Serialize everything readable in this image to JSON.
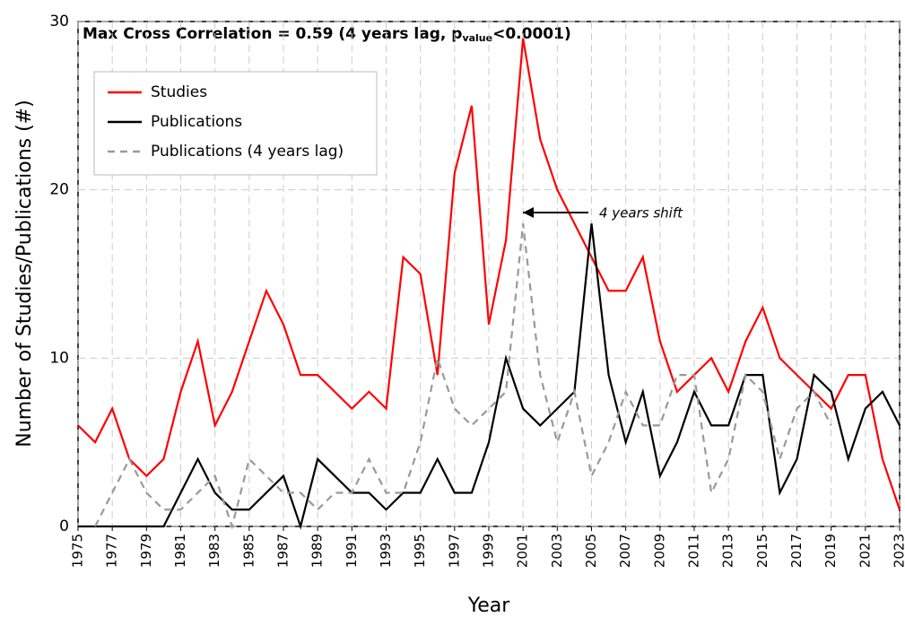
{
  "chart_data": {
    "type": "line",
    "title_parts": [
      "Max Cross Correlation = 0.59 (4 years lag, p",
      "value",
      "<0.0001)"
    ],
    "x_label": "Year",
    "y_label": "Number of Studies/Publications (#)",
    "annotation": "4 years shift",
    "x": [
      1975,
      1976,
      1977,
      1978,
      1979,
      1980,
      1981,
      1982,
      1983,
      1984,
      1985,
      1986,
      1987,
      1988,
      1989,
      1990,
      1991,
      1992,
      1993,
      1994,
      1995,
      1996,
      1997,
      1998,
      1999,
      2000,
      2001,
      2002,
      2003,
      2004,
      2005,
      2006,
      2007,
      2008,
      2009,
      2010,
      2011,
      2012,
      2013,
      2014,
      2015,
      2016,
      2017,
      2018,
      2019,
      2020,
      2021,
      2022,
      2023
    ],
    "series": [
      {
        "name": "Studies",
        "color": "#ff0000",
        "dash": false,
        "values": [
          6,
          5,
          7,
          4,
          3,
          4,
          8,
          11,
          6,
          8,
          11,
          14,
          12,
          9,
          9,
          8,
          7,
          8,
          7,
          16,
          15,
          9,
          21,
          25,
          12,
          17,
          29,
          23,
          20,
          18,
          16,
          14,
          14,
          16,
          11,
          8,
          9,
          10,
          8,
          11,
          13,
          10,
          9,
          8,
          7,
          9,
          9,
          4,
          1
        ]
      },
      {
        "name": "Publications",
        "color": "#000000",
        "dash": false,
        "values": [
          0,
          0,
          0,
          0,
          0,
          0,
          2,
          4,
          2,
          1,
          1,
          2,
          3,
          0,
          4,
          3,
          2,
          2,
          1,
          2,
          2,
          4,
          2,
          2,
          5,
          10,
          7,
          6,
          7,
          8,
          18,
          9,
          5,
          8,
          3,
          5,
          8,
          6,
          6,
          9,
          9,
          2,
          4,
          9,
          8,
          4,
          7,
          8,
          6
        ]
      },
      {
        "name": "Publications (4 years lag)",
        "color": "#999999",
        "dash": true,
        "values": [
          null,
          0,
          2,
          4,
          2,
          1,
          1,
          2,
          3,
          0,
          4,
          3,
          2,
          2,
          1,
          2,
          2,
          4,
          2,
          2,
          5,
          10,
          7,
          6,
          7,
          8,
          18,
          9,
          5,
          8,
          3,
          5,
          8,
          6,
          6,
          9,
          9,
          2,
          4,
          9,
          8,
          4,
          7,
          8,
          6,
          null,
          null,
          null,
          null
        ]
      }
    ],
    "xlim": [
      1975,
      2023
    ],
    "xticks": [
      1975,
      1977,
      1979,
      1981,
      1983,
      1985,
      1987,
      1989,
      1991,
      1993,
      1995,
      1997,
      1999,
      2001,
      2003,
      2005,
      2007,
      2009,
      2011,
      2013,
      2015,
      2017,
      2019,
      2021,
      2023
    ],
    "ylim": [
      0,
      30
    ],
    "yticks": [
      0,
      10,
      20,
      30
    ],
    "grid": true,
    "legend": "upper left"
  }
}
